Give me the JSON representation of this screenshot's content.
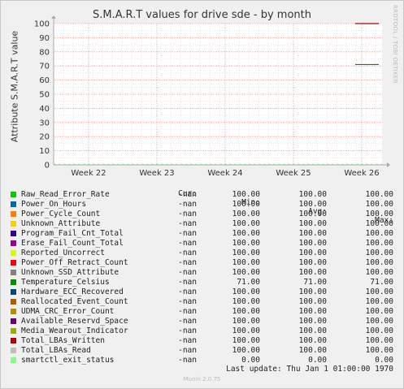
{
  "title": "S.M.A.R.T values for drive sde - by month",
  "side_label": "RRDTOOL / TOBI OETIKER",
  "footer": "Munin 2.0.75",
  "last_update": "Last update: Thu Jan  1 01:00:00 1970",
  "legend_headers": {
    "cur": "Cur:",
    "min": "Min:",
    "avg": "Avg:",
    "max": "Max:"
  },
  "chart_data": {
    "type": "line",
    "title": "S.M.A.R.T values for drive sde - by month",
    "ylabel": "Attribute S.M.A.R.T value",
    "xlabel": "",
    "x_ticks": [
      "Week 22",
      "Week 23",
      "Week 24",
      "Week 25",
      "Week 26"
    ],
    "y_ticks": [
      0,
      10,
      20,
      30,
      40,
      50,
      60,
      70,
      80,
      90,
      100
    ],
    "ylim": [
      0,
      100
    ],
    "grid": true,
    "visible_segments": [
      {
        "name": "Raw_Read_Error_Rate (and other attributes)",
        "value": 100,
        "x_range": [
          "Week 26",
          "end"
        ]
      },
      {
        "name": "Temperature_Celsius",
        "value": 71,
        "x_range": [
          "Week 26",
          "end"
        ]
      }
    ],
    "series": [
      {
        "name": "Raw_Read_Error_Rate",
        "color": "#00cc00",
        "cur": "-nan",
        "min": "100.00",
        "avg": "100.00",
        "max": "100.00"
      },
      {
        "name": "Power_On_Hours",
        "color": "#0066b3",
        "cur": "-nan",
        "min": "100.00",
        "avg": "100.00",
        "max": "100.00"
      },
      {
        "name": "Power_Cycle_Count",
        "color": "#ff8000",
        "cur": "-nan",
        "min": "100.00",
        "avg": "100.00",
        "max": "100.00"
      },
      {
        "name": "Unknown_Attribute",
        "color": "#ffcc00",
        "cur": "-nan",
        "min": "100.00",
        "avg": "100.00",
        "max": "100.00"
      },
      {
        "name": "Program_Fail_Cnt_Total",
        "color": "#330099",
        "cur": "-nan",
        "min": "100.00",
        "avg": "100.00",
        "max": "100.00"
      },
      {
        "name": "Erase_Fail_Count_Total",
        "color": "#990099",
        "cur": "-nan",
        "min": "100.00",
        "avg": "100.00",
        "max": "100.00"
      },
      {
        "name": "Reported_Uncorrect",
        "color": "#ccff00",
        "cur": "-nan",
        "min": "100.00",
        "avg": "100.00",
        "max": "100.00"
      },
      {
        "name": "Power_Off_Retract_Count",
        "color": "#ff0000",
        "cur": "-nan",
        "min": "100.00",
        "avg": "100.00",
        "max": "100.00"
      },
      {
        "name": "Unknown_SSD_Attribute",
        "color": "#808080",
        "cur": "-nan",
        "min": "100.00",
        "avg": "100.00",
        "max": "100.00"
      },
      {
        "name": "Temperature_Celsius",
        "color": "#008f00",
        "cur": "-nan",
        "min": "71.00",
        "avg": "71.00",
        "max": "71.00"
      },
      {
        "name": "Hardware_ECC_Recovered",
        "color": "#00487d",
        "cur": "-nan",
        "min": "100.00",
        "avg": "100.00",
        "max": "100.00"
      },
      {
        "name": "Reallocated_Event_Count",
        "color": "#b35a00",
        "cur": "-nan",
        "min": "100.00",
        "avg": "100.00",
        "max": "100.00"
      },
      {
        "name": "UDMA_CRC_Error_Count",
        "color": "#b38f00",
        "cur": "-nan",
        "min": "100.00",
        "avg": "100.00",
        "max": "100.00"
      },
      {
        "name": "Available_Reservd_Space",
        "color": "#6b006b",
        "cur": "-nan",
        "min": "100.00",
        "avg": "100.00",
        "max": "100.00"
      },
      {
        "name": "Media_Wearout_Indicator",
        "color": "#8fb300",
        "cur": "-nan",
        "min": "100.00",
        "avg": "100.00",
        "max": "100.00"
      },
      {
        "name": "Total_LBAs_Written",
        "color": "#b30000",
        "cur": "-nan",
        "min": "100.00",
        "avg": "100.00",
        "max": "100.00"
      },
      {
        "name": "Total_LBAs_Read",
        "color": "#bebebe",
        "cur": "-nan",
        "min": "100.00",
        "avg": "100.00",
        "max": "100.00"
      },
      {
        "name": "smartctl_exit_status",
        "color": "#80ff80",
        "cur": "-nan",
        "min": "0.00",
        "avg": "0.00",
        "max": "0.00"
      }
    ]
  }
}
